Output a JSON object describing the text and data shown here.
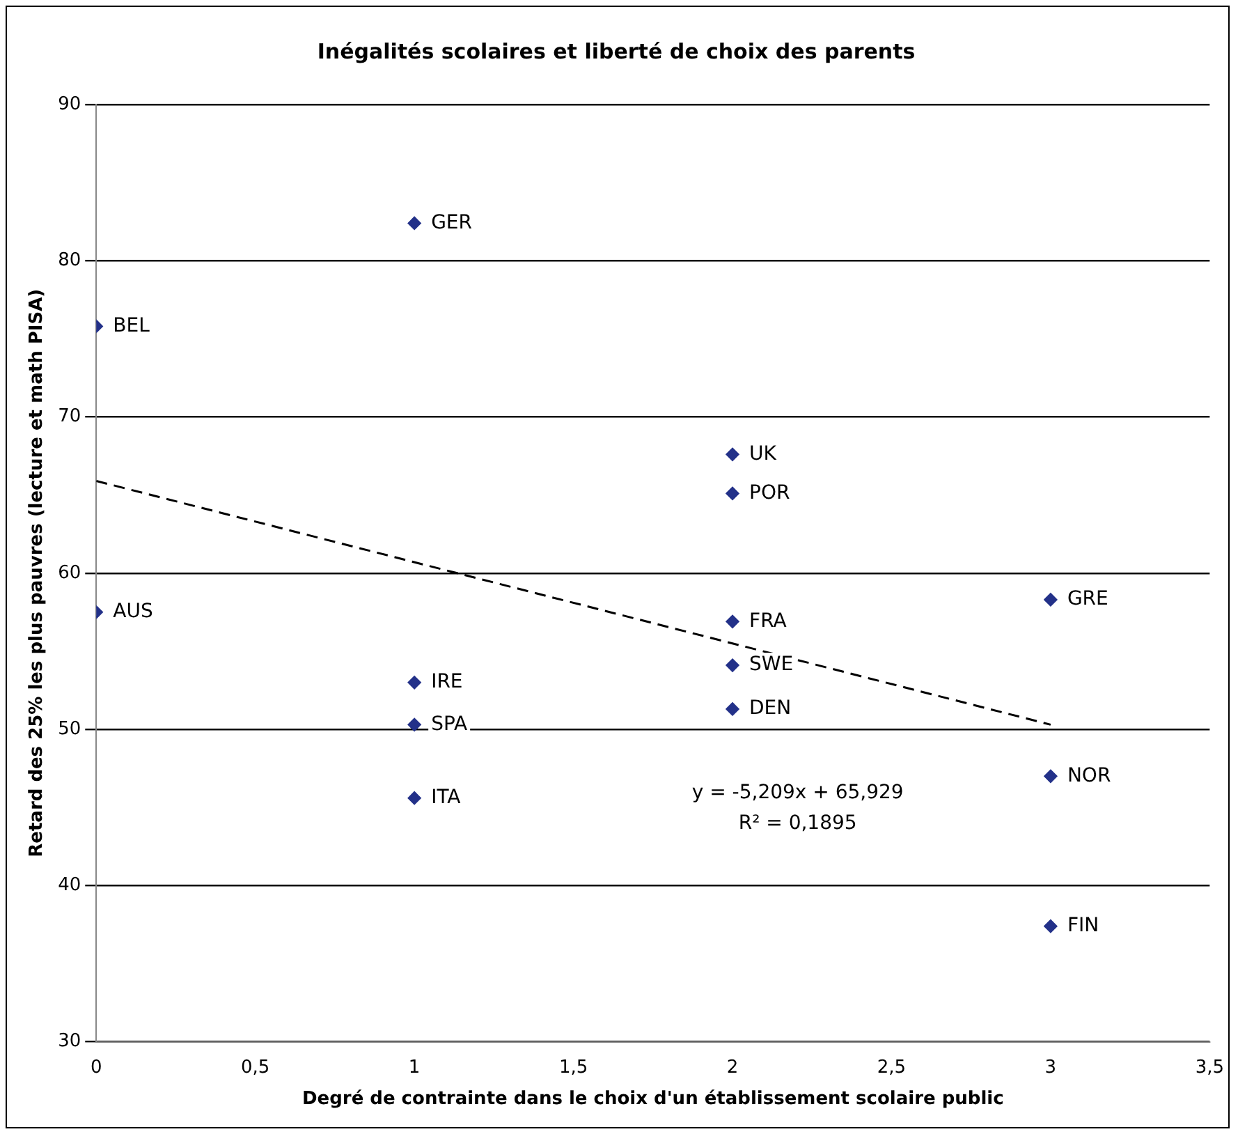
{
  "chart_data": {
    "type": "scatter",
    "title": "Inégalités scolaires et liberté de choix des parents",
    "xlabel": "Degré de contrainte dans le choix d'un établissement scolaire public",
    "ylabel": "Retard des 25% les plus pauvres (lecture et math PISA)",
    "series": [
      {
        "color": "#233189",
        "marker": "diamond",
        "x": [
          1,
          0,
          2,
          2,
          0,
          3,
          2,
          2,
          1,
          2,
          1,
          3,
          1,
          3
        ],
        "values": [
          82.4,
          75.8,
          67.6,
          65.1,
          57.5,
          58.3,
          56.9,
          54.1,
          53.0,
          51.3,
          50.3,
          47.0,
          45.6,
          37.4
        ]
      },
      {
        "type": "line",
        "color": "#000000",
        "line_style": "dashed",
        "marker": "none",
        "x": [
          0,
          3
        ],
        "values": [
          65.9,
          50.3
        ]
      }
    ],
    "xlim": [
      0,
      3.5
    ],
    "xticks": [
      0,
      {
        "value": 0.5,
        "label": "0,5"
      },
      1,
      {
        "value": 1.5,
        "label": "1,5"
      },
      2,
      {
        "value": 2.5,
        "label": "2,5"
      },
      3,
      {
        "value": 3.5,
        "label": "3,5"
      }
    ],
    "ylim": [
      30,
      90
    ],
    "yticks": [
      30,
      40,
      50,
      60,
      70,
      80,
      90
    ],
    "grid": "y",
    "legend": false,
    "annotations": [
      {
        "text": "GER",
        "x": 1,
        "y": 82.4
      },
      {
        "text": "BEL",
        "x": 0,
        "y": 75.8
      },
      {
        "text": "UK",
        "x": 2,
        "y": 67.6
      },
      {
        "text": "POR",
        "x": 2,
        "y": 65.1
      },
      {
        "text": "AUS",
        "x": 0,
        "y": 57.5
      },
      {
        "text": "GRE",
        "x": 3,
        "y": 58.3
      },
      {
        "text": "FRA",
        "x": 2,
        "y": 56.9
      },
      {
        "text": "SWE",
        "x": 2,
        "y": 54.1
      },
      {
        "text": "IRE",
        "x": 1,
        "y": 53.0
      },
      {
        "text": "DEN",
        "x": 2,
        "y": 51.3
      },
      {
        "text": "SPA",
        "x": 1,
        "y": 50.3
      },
      {
        "text": "NOR",
        "x": 3,
        "y": 47.0
      },
      {
        "text": "ITA",
        "x": 1,
        "y": 45.6
      },
      {
        "text": "FIN",
        "x": 3,
        "y": 37.4
      },
      "y = -5,209x + 65,929",
      "R² = 0,1895"
    ]
  }
}
